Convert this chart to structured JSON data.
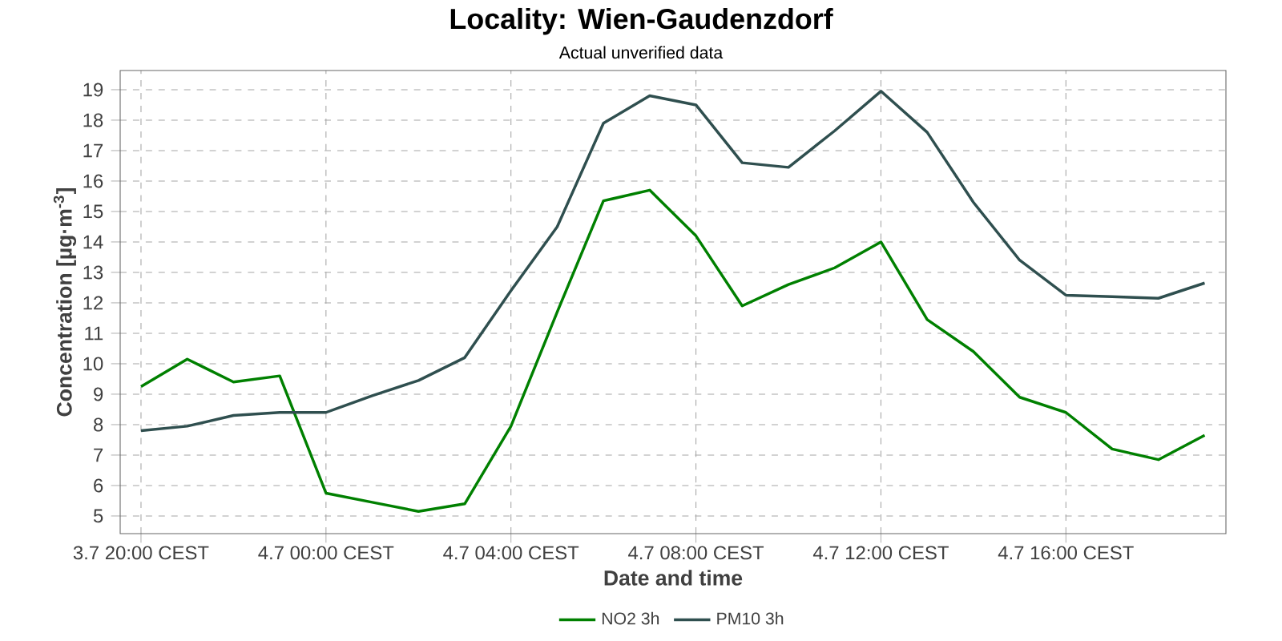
{
  "chart_data": {
    "type": "line",
    "title": "Locality: Wien-Gaudenzdorf",
    "subtitle": "Actual unverified data",
    "xlabel": "Date and time",
    "ylabel": "Concentration [µg·m$^{-3}$]",
    "categories": [
      "3.7 20:00 CEST",
      null,
      null,
      null,
      "4.7 00:00 CEST",
      null,
      null,
      null,
      "4.7 04:00 CEST",
      null,
      null,
      null,
      "4.7 08:00 CEST",
      null,
      null,
      null,
      "4.7 12:00 CEST",
      null,
      null,
      null,
      "4.7 16:00 CEST",
      null,
      null,
      null
    ],
    "series": [
      {
        "name": "NO2 3h",
        "color": "#008000",
        "values": [
          9.25,
          10.15,
          9.4,
          9.6,
          5.75,
          5.45,
          5.15,
          5.4,
          7.95,
          11.7,
          15.35,
          15.7,
          14.2,
          11.9,
          12.6,
          13.15,
          14.0,
          11.45,
          10.4,
          8.9,
          8.4,
          7.2,
          6.85,
          7.65
        ]
      },
      {
        "name": "PM10 3h",
        "color": "#2f4f4f",
        "values": [
          7.8,
          7.95,
          8.3,
          8.4,
          8.4,
          8.95,
          9.45,
          10.2,
          12.4,
          14.5,
          17.9,
          18.8,
          18.5,
          16.6,
          16.45,
          17.65,
          18.95,
          17.6,
          15.3,
          13.4,
          12.25,
          12.2,
          12.15,
          12.65
        ]
      }
    ],
    "ylim": [
      4.42,
      19.63
    ],
    "yticks": [
      5,
      6,
      7,
      8,
      9,
      10,
      11,
      12,
      13,
      14,
      15,
      16,
      17,
      18,
      19
    ],
    "grid": true,
    "legend": "bottom",
    "marker": "none",
    "line_style": "solid"
  }
}
